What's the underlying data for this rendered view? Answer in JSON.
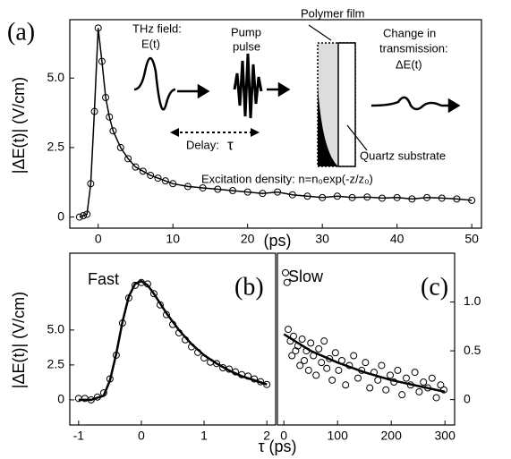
{
  "chart_data": [
    {
      "type": "line",
      "panel_label": "(a)",
      "ylabel": "|ΔE(t)| (V/cm)",
      "xlabel": "(ps)",
      "xlim": [
        -3.8,
        51.3
      ],
      "ylim": [
        -0.4,
        7.1
      ],
      "xticks": [
        0,
        10,
        20,
        30,
        40,
        50
      ],
      "yticks": [
        0,
        2.5,
        {
          "value": 5,
          "label": "5.0"
        }
      ],
      "y_axis_side": "left",
      "annotations": [
        "THz field:",
        "E(t)",
        "Pump",
        "pulse",
        "Delay:",
        "τ",
        "Polymer film",
        "Change in",
        "transmission:",
        "ΔE(t)",
        "Quartz substrate",
        "Excitation density: n=n₀exp(-z/z₀)"
      ],
      "series": [
        {
          "color": "#000000",
          "style": "line+markers",
          "x": [
            -2.5,
            -2,
            -1.5,
            -1,
            -0.5,
            0,
            0.5,
            1,
            1.5,
            2,
            3,
            4,
            5,
            6,
            7,
            8,
            9,
            10,
            12,
            14,
            16,
            18,
            20,
            22,
            24,
            26,
            28,
            30,
            32,
            34,
            36,
            38,
            40,
            42,
            44,
            46,
            48,
            50
          ],
          "values": [
            0,
            0.05,
            0.1,
            1.2,
            3.8,
            6.8,
            5.6,
            4.3,
            3.6,
            3.1,
            2.5,
            2.1,
            1.8,
            1.65,
            1.5,
            1.4,
            1.3,
            1.2,
            1.1,
            1.05,
            1.0,
            0.95,
            0.9,
            0.85,
            0.9,
            0.8,
            0.75,
            0.7,
            0.75,
            0.7,
            0.72,
            0.68,
            0.7,
            0.65,
            0.7,
            0.68,
            0.65,
            0.6
          ]
        }
      ]
    },
    {
      "type": "line",
      "panel_label": "(b)",
      "title": "Fast",
      "ylabel": "|ΔE(t)| (V/cm)",
      "xlabel": "τ (ps)",
      "xlim": [
        -1.14,
        2.14
      ],
      "ylim": [
        -1.8,
        10.5
      ],
      "xticks": [
        -1,
        0,
        1,
        2
      ],
      "yticks": [
        0,
        2.5,
        {
          "value": 5,
          "label": "5.0"
        }
      ],
      "y_axis_side": "left",
      "series": [
        {
          "color": "#000000",
          "style": "markers",
          "x": [
            -1,
            -0.9,
            -0.8,
            -0.7,
            -0.6,
            -0.5,
            -0.4,
            -0.3,
            -0.2,
            -0.1,
            0,
            0.1,
            0.2,
            0.3,
            0.4,
            0.5,
            0.6,
            0.7,
            0.8,
            0.9,
            1,
            1.1,
            1.2,
            1.3,
            1.4,
            1.5,
            1.6,
            1.7,
            1.8,
            1.9,
            2
          ],
          "values": [
            0.1,
            0.1,
            0,
            0.2,
            0.5,
            1.5,
            3.2,
            5.5,
            7.3,
            8.2,
            8.4,
            8.3,
            7.6,
            6.8,
            6.1,
            5.4,
            4.8,
            4.3,
            3.8,
            3.4,
            3.0,
            2.7,
            2.6,
            2.3,
            2.2,
            2.0,
            1.8,
            1.7,
            1.5,
            1.3,
            1.1
          ]
        },
        {
          "color": "#000000",
          "style": "line",
          "x": [
            -1,
            -0.8,
            -0.6,
            -0.5,
            -0.4,
            -0.3,
            -0.2,
            -0.1,
            0,
            0.1,
            0.2,
            0.4,
            0.6,
            0.8,
            1,
            1.2,
            1.4,
            1.6,
            1.8,
            2
          ],
          "values": [
            0,
            0,
            0.3,
            1.4,
            3.3,
            5.6,
            7.4,
            8.3,
            8.5,
            8.2,
            7.6,
            6.2,
            5.0,
            4.0,
            3.2,
            2.6,
            2.1,
            1.7,
            1.4,
            1.1
          ]
        }
      ]
    },
    {
      "type": "scatter",
      "panel_label": "(c)",
      "title": "Slow",
      "xlim": [
        -12,
        318
      ],
      "ylim": [
        -0.26,
        1.5
      ],
      "xticks": [
        0,
        100,
        200,
        300
      ],
      "yticks": [
        0,
        0.5,
        {
          "value": 1,
          "label": "1.0"
        }
      ],
      "y_axis_side": "right",
      "series": [
        {
          "color": "#000000",
          "style": "markers",
          "x": [
            3,
            6,
            8,
            12,
            15,
            18,
            22,
            26,
            30,
            34,
            38,
            42,
            46,
            50,
            55,
            60,
            65,
            70,
            75,
            80,
            85,
            90,
            96,
            102,
            108,
            115,
            122,
            130,
            138,
            145,
            152,
            160,
            168,
            175,
            182,
            190,
            198,
            205,
            212,
            220,
            228,
            236,
            244,
            252,
            260,
            268,
            276,
            284,
            292,
            298
          ],
          "values": [
            1.3,
            1.2,
            0.72,
            0.6,
            0.45,
            0.65,
            0.5,
            0.55,
            0.35,
            0.62,
            0.4,
            0.5,
            0.3,
            0.58,
            0.45,
            0.25,
            0.52,
            0.38,
            0.6,
            0.32,
            0.42,
            0.2,
            0.48,
            0.3,
            0.4,
            0.15,
            0.35,
            0.45,
            0.22,
            0.3,
            0.38,
            0.12,
            0.28,
            0.2,
            0.35,
            0.1,
            0.25,
            0.18,
            0.3,
            0.05,
            0.22,
            0.15,
            0.28,
            0.08,
            0.18,
            0.12,
            0.22,
            0.02,
            0.15,
            0.1
          ]
        },
        {
          "color": "#000000",
          "style": "line",
          "x": [
            0,
            50,
            100,
            150,
            200,
            250,
            300
          ],
          "values": [
            0.67,
            0.5,
            0.38,
            0.28,
            0.2,
            0.14,
            0.08
          ]
        }
      ]
    }
  ]
}
